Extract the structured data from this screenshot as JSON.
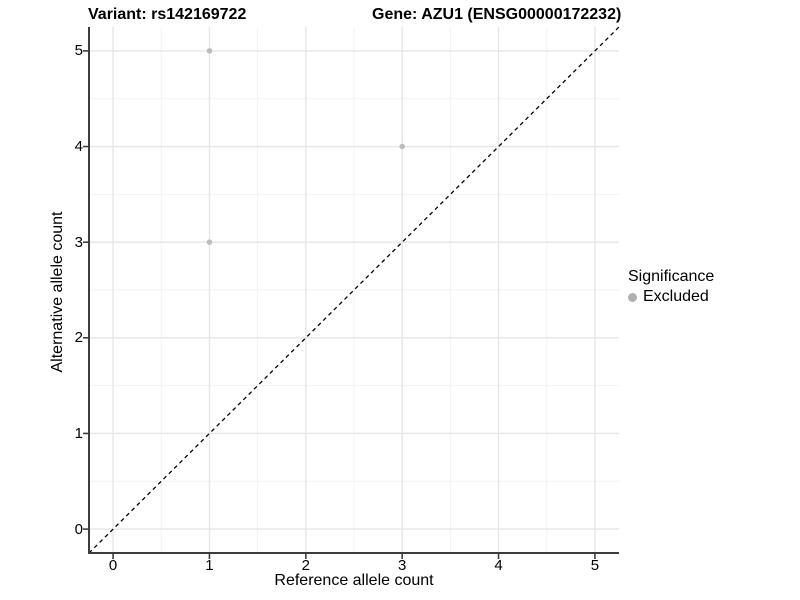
{
  "header": {
    "variant_title": "Variant: rs142169722",
    "gene_title": "Gene: AZU1 (ENSG00000172232)"
  },
  "chart_data": {
    "type": "scatter",
    "title": "",
    "xlabel": "Reference allele count",
    "ylabel": "Alternative allele count",
    "xlim": [
      -0.25,
      5.25
    ],
    "ylim": [
      -0.25,
      5.25
    ],
    "x_ticks": [
      0,
      1,
      2,
      3,
      4,
      5
    ],
    "y_ticks": [
      0,
      1,
      2,
      3,
      4,
      5
    ],
    "grid": "major and minor light-gray gridlines on white panel",
    "series": [
      {
        "name": "Excluded",
        "color": "#bdbdbd",
        "points": [
          [
            1,
            5
          ],
          [
            3,
            4
          ],
          [
            1,
            3
          ]
        ]
      }
    ],
    "reference_line": {
      "type": "identity y=x",
      "style": "dashed",
      "color": "#000000"
    },
    "legend": {
      "title": "Significance",
      "position": "right-center",
      "items": [
        {
          "label": "Excluded",
          "color": "#b0b0b0"
        }
      ]
    }
  },
  "colors": {
    "background": "#ffffff",
    "text": "#000000",
    "axis": "#3c3c3c",
    "grid_major": "#e6e6e6",
    "grid_minor": "#f2f2f2",
    "point": "#bdbdbd",
    "reference_line": "#000000"
  }
}
